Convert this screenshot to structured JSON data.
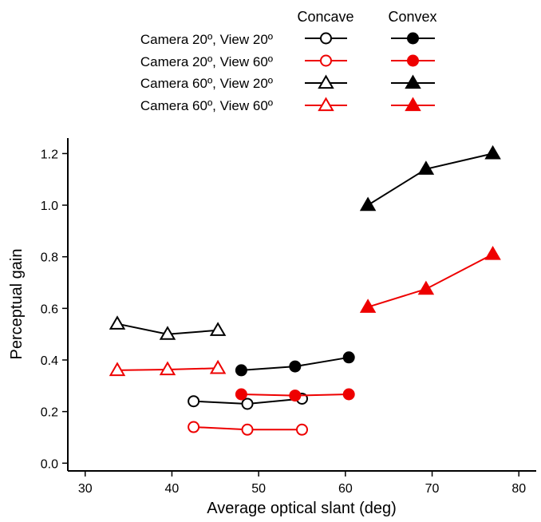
{
  "chart_data": {
    "type": "line",
    "xlabel": "Average optical slant (deg)",
    "ylabel": "Perceptual gain",
    "xlim": [
      28,
      82
    ],
    "ylim": [
      -0.03,
      1.26
    ],
    "xticks": [
      "30",
      "40",
      "50",
      "60",
      "70",
      "80"
    ],
    "yticks": [
      "0.0",
      "0.2",
      "0.4",
      "0.6",
      "0.8",
      "1.0",
      "1.2"
    ],
    "grid": false,
    "legend": {
      "placement": "top",
      "column_headers": [
        "Concave",
        "Convex"
      ],
      "row_labels": [
        "Camera 20º, View 20º",
        "Camera 20º, View 60º",
        "Camera 60º, View 20º",
        "Camera 60º, View 60º"
      ]
    },
    "series": [
      {
        "condition": 0,
        "shape": "circle",
        "fill": "open",
        "color": "#000000",
        "x": [
          42.5,
          48.7,
          55.0
        ],
        "y": [
          0.24,
          0.23,
          0.25
        ]
      },
      {
        "condition": 1,
        "shape": "circle",
        "fill": "open",
        "color": "#ee0000",
        "x": [
          42.5,
          48.7,
          55.0
        ],
        "y": [
          0.14,
          0.13,
          0.13
        ]
      },
      {
        "condition": 2,
        "shape": "triangle",
        "fill": "open",
        "color": "#000000",
        "x": [
          33.7,
          39.5,
          45.3
        ],
        "y": [
          0.54,
          0.5,
          0.515
        ]
      },
      {
        "condition": 3,
        "shape": "triangle",
        "fill": "open",
        "color": "#ee0000",
        "x": [
          33.7,
          39.5,
          45.3
        ],
        "y": [
          0.36,
          0.363,
          0.368
        ]
      },
      {
        "condition": 0,
        "shape": "circle",
        "fill": "filled",
        "color": "#000000",
        "x": [
          48.0,
          54.2,
          60.4
        ],
        "y": [
          0.36,
          0.375,
          0.41
        ]
      },
      {
        "condition": 1,
        "shape": "circle",
        "fill": "filled",
        "color": "#ee0000",
        "x": [
          48.0,
          54.2,
          60.4
        ],
        "y": [
          0.267,
          0.262,
          0.267
        ]
      },
      {
        "condition": 2,
        "shape": "triangle",
        "fill": "filled",
        "color": "#000000",
        "x": [
          62.6,
          69.3,
          77.0
        ],
        "y": [
          1.0,
          1.14,
          1.2
        ]
      },
      {
        "condition": 3,
        "shape": "triangle",
        "fill": "filled",
        "color": "#ee0000",
        "x": [
          62.6,
          69.3,
          77.0
        ],
        "y": [
          0.605,
          0.675,
          0.81
        ]
      }
    ]
  }
}
